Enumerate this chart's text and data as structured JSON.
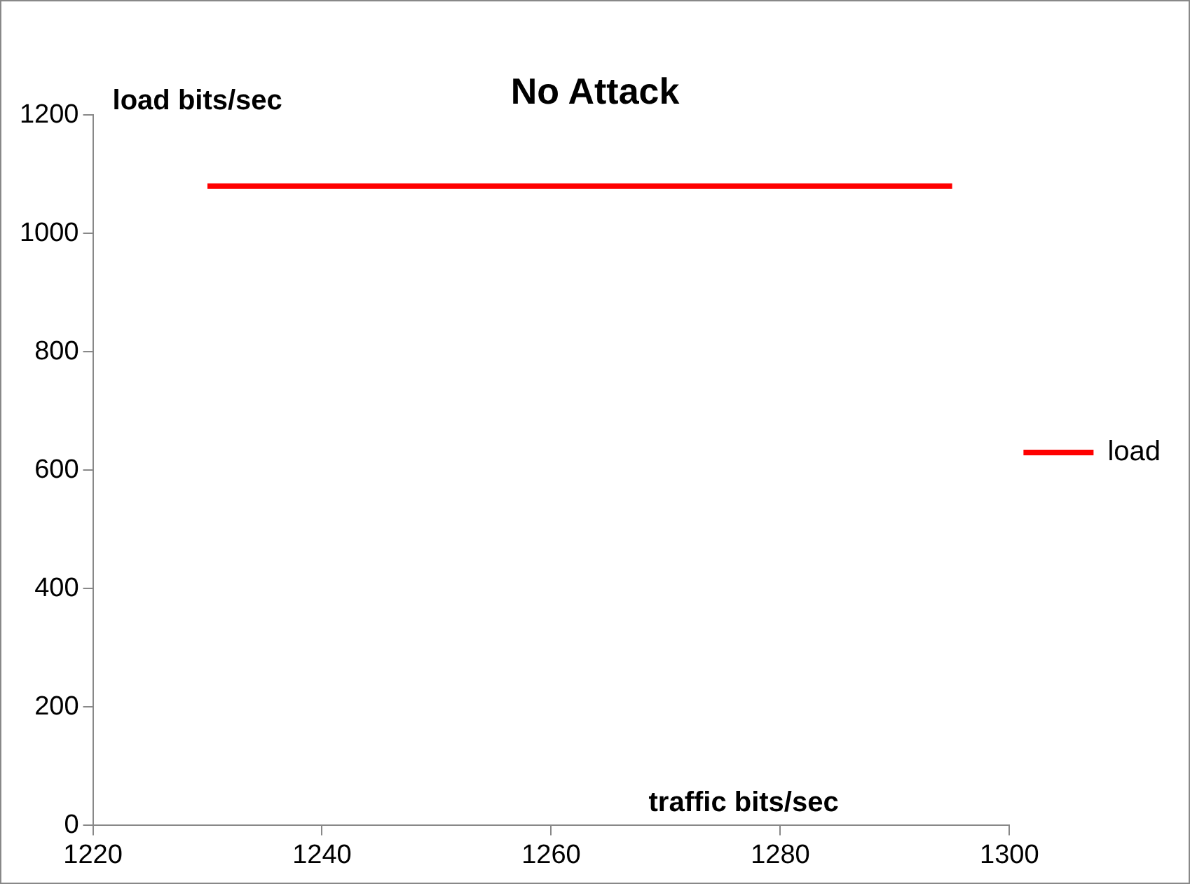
{
  "chart_data": {
    "type": "line",
    "title": "No Attack",
    "xlabel": "traffic bits/sec",
    "ylabel": "load bits/sec",
    "x": [
      1230,
      1295
    ],
    "series": [
      {
        "name": "load",
        "color": "#ff0000",
        "values": [
          1080,
          1080
        ]
      }
    ],
    "xlim": [
      1220,
      1300
    ],
    "xticks": [
      1220,
      1240,
      1260,
      1280,
      1300
    ],
    "ylim": [
      0,
      1200
    ],
    "yticks": [
      0,
      200,
      400,
      600,
      800,
      1000,
      1200
    ],
    "grid": false,
    "legend": "right",
    "marker": "none",
    "line_style": "solid"
  }
}
